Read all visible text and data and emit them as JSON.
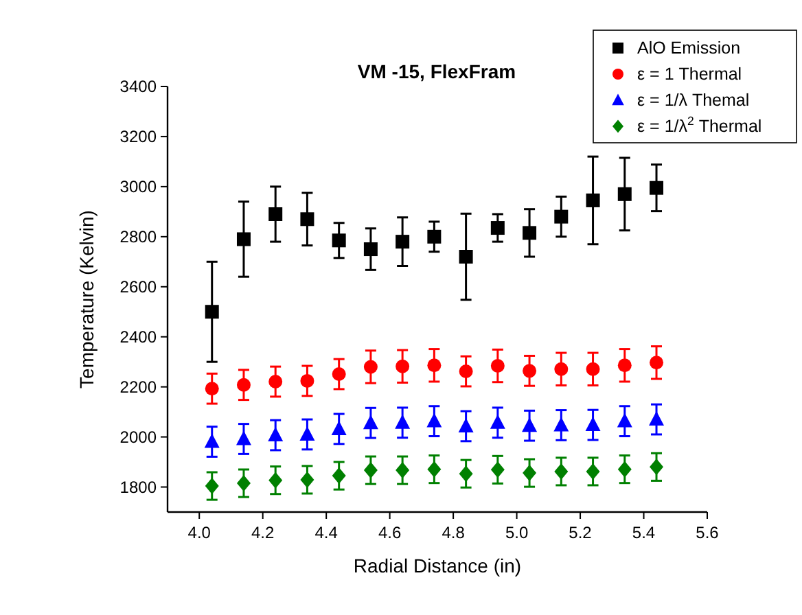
{
  "chart_data": {
    "type": "scatter",
    "title": "VM -15, FlexFram",
    "xlabel": "Radial Distance (in)",
    "ylabel": "Temperature (Kelvin)",
    "x": [
      4.04,
      4.14,
      4.24,
      4.34,
      4.44,
      4.54,
      4.64,
      4.74,
      4.84,
      4.94,
      5.04,
      5.14,
      5.24,
      5.34,
      5.44
    ],
    "series": [
      {
        "name": "AlO Emission",
        "color": "#000000",
        "marker": "square",
        "values": [
          2500,
          2790,
          2890,
          2870,
          2785,
          2750,
          2780,
          2800,
          2720,
          2835,
          2815,
          2880,
          2945,
          2970,
          2995
        ],
        "errors": [
          200,
          150,
          110,
          105,
          70,
          83,
          97,
          60,
          172,
          55,
          95,
          80,
          175,
          145,
          93
        ]
      },
      {
        "name": "ε = 1 Thermal",
        "color": "#ff0000",
        "marker": "circle",
        "values": [
          2193,
          2208,
          2221,
          2224,
          2251,
          2280,
          2282,
          2286,
          2262,
          2284,
          2264,
          2271,
          2271,
          2286,
          2297
        ],
        "errors": [
          60,
          60,
          60,
          60,
          60,
          65,
          65,
          65,
          60,
          65,
          60,
          65,
          65,
          65,
          65
        ]
      },
      {
        "name": "ε = 1/λ Themal",
        "color": "#0000ff",
        "marker": "triangle",
        "values": [
          1981,
          1992,
          2007,
          2010,
          2032,
          2056,
          2057,
          2063,
          2043,
          2057,
          2045,
          2047,
          2048,
          2063,
          2070
        ],
        "errors": [
          60,
          60,
          60,
          60,
          60,
          60,
          60,
          60,
          60,
          60,
          60,
          60,
          60,
          60,
          60
        ]
      },
      {
        "name": "ε = 1/λ$^{2}$ Thermal",
        "color": "#008000",
        "marker": "diamond",
        "values": [
          1804,
          1815,
          1827,
          1829,
          1845,
          1867,
          1867,
          1871,
          1853,
          1869,
          1856,
          1862,
          1862,
          1871,
          1880
        ],
        "errors": [
          55,
          55,
          55,
          55,
          55,
          55,
          55,
          55,
          55,
          55,
          55,
          55,
          55,
          55,
          55
        ]
      }
    ],
    "xlim": [
      3.9,
      5.6
    ],
    "xticks": [
      {
        "value": 4,
        "label": "4.0"
      },
      4.2,
      4.4,
      4.6,
      4.8,
      {
        "value": 5,
        "label": "5.0"
      },
      5.2,
      5.4,
      5.6
    ],
    "ylim": [
      1700,
      3400
    ],
    "yticks": [
      1800,
      2000,
      2200,
      2400,
      2600,
      2800,
      3000,
      3200,
      3400
    ],
    "legend": "top right",
    "grid": false
  }
}
